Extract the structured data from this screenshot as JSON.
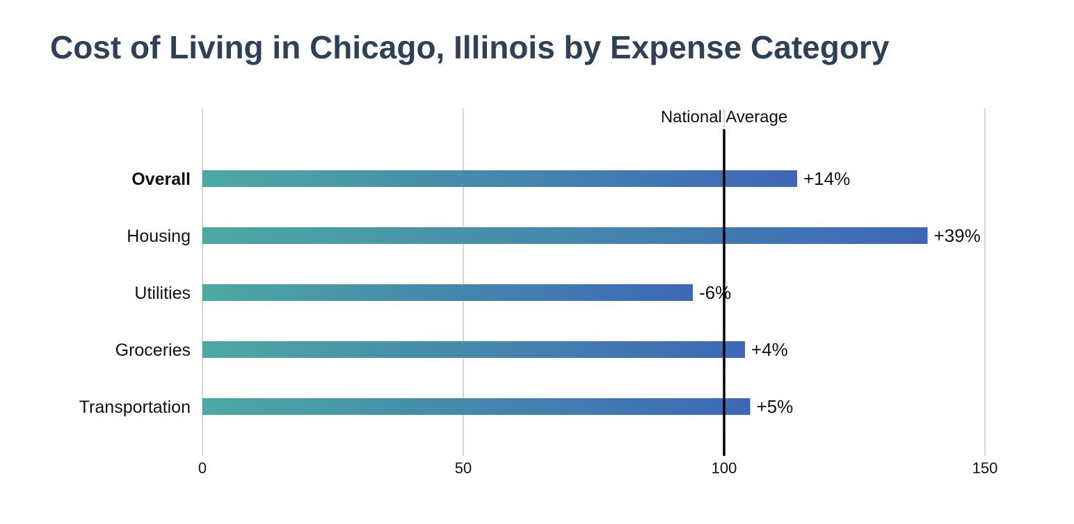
{
  "chart_data": {
    "type": "bar",
    "orientation": "horizontal",
    "title": "Cost of Living in Chicago, Illinois by Expense Category",
    "categories": [
      "Overall",
      "Housing",
      "Utilities",
      "Groceries",
      "Transportation"
    ],
    "bold_categories": [
      "Overall"
    ],
    "values": [
      114,
      139,
      94,
      104,
      105
    ],
    "data_labels": [
      "+14%",
      "+39%",
      "-6%",
      "+4%",
      "+5%"
    ],
    "xlim": [
      0,
      150
    ],
    "x_ticks": [
      0,
      50,
      100,
      150
    ],
    "x_tick_labels": [
      "0",
      "50",
      "100",
      "150"
    ],
    "grid": true,
    "reference_line": {
      "value": 100,
      "label": "National Average",
      "color": "#000000"
    },
    "bar_gradient": {
      "start_color": "#4ca9a2",
      "end_color": "#3d67b8"
    },
    "grid_color": "#c8c8c8",
    "title_color": "#2e4156"
  }
}
